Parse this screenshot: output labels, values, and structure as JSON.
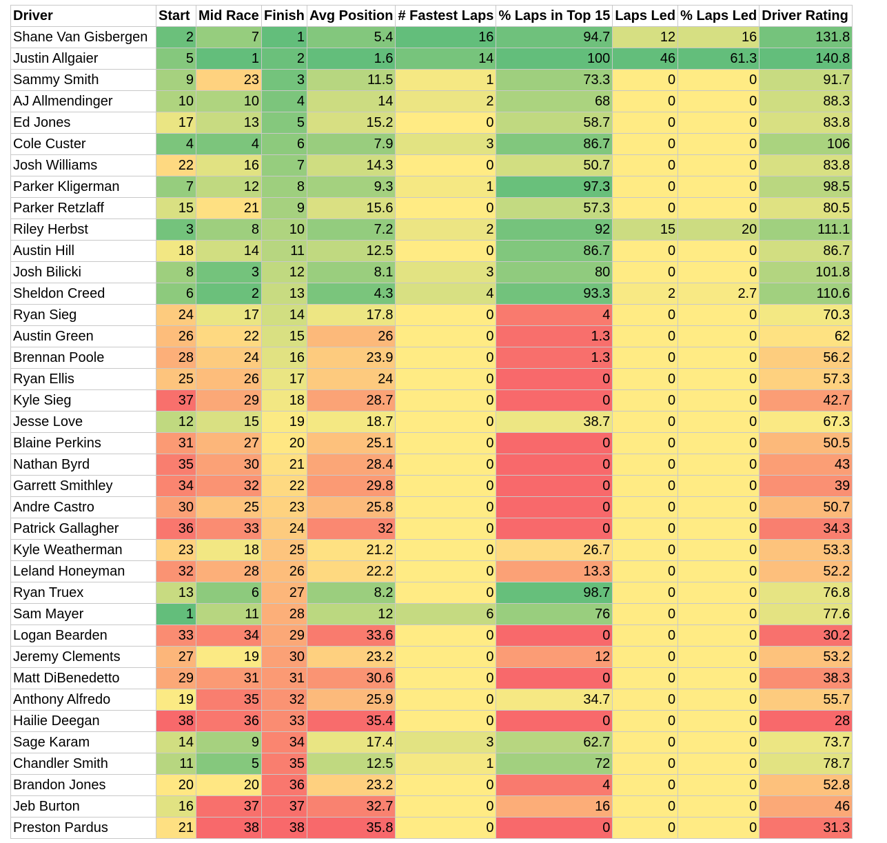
{
  "table": {
    "header": [
      "Driver",
      "Start",
      "Mid Race",
      "Finish",
      "Avg Position",
      "# Fastest Laps",
      "% Laps in Top 15",
      "Laps Led",
      "% Laps Led",
      "Driver Rating"
    ],
    "color_scale": {
      "good": "#63be7b",
      "mid": "#ffeb84",
      "bad": "#f8696b",
      "lower_is_better": [
        true,
        true,
        true,
        true,
        false,
        false,
        false,
        false,
        false
      ]
    },
    "rows": [
      [
        "Shane Van Gisbergen",
        2,
        7,
        1,
        5.4,
        16,
        94.7,
        12,
        16,
        131.8
      ],
      [
        "Justin Allgaier",
        5,
        1,
        2,
        1.6,
        14,
        100,
        46,
        61.3,
        140.8
      ],
      [
        "Sammy Smith",
        9,
        23,
        3,
        11.5,
        1,
        73.3,
        0,
        0,
        91.7
      ],
      [
        "AJ Allmendinger",
        10,
        10,
        4,
        14,
        2,
        68,
        0,
        0,
        88.3
      ],
      [
        "Ed Jones",
        17,
        13,
        5,
        15.2,
        0,
        58.7,
        0,
        0,
        83.8
      ],
      [
        "Cole Custer",
        4,
        4,
        6,
        7.9,
        3,
        86.7,
        0,
        0,
        106
      ],
      [
        "Josh Williams",
        22,
        16,
        7,
        14.3,
        0,
        50.7,
        0,
        0,
        83.8
      ],
      [
        "Parker Kligerman",
        7,
        12,
        8,
        9.3,
        1,
        97.3,
        0,
        0,
        98.5
      ],
      [
        "Parker Retzlaff",
        15,
        21,
        9,
        15.6,
        0,
        57.3,
        0,
        0,
        80.5
      ],
      [
        "Riley Herbst",
        3,
        8,
        10,
        7.2,
        2,
        92,
        15,
        20,
        111.1
      ],
      [
        "Austin Hill",
        18,
        14,
        11,
        12.5,
        0,
        86.7,
        0,
        0,
        86.7
      ],
      [
        "Josh Bilicki",
        8,
        3,
        12,
        8.1,
        3,
        80,
        0,
        0,
        101.8
      ],
      [
        "Sheldon Creed",
        6,
        2,
        13,
        4.3,
        4,
        93.3,
        2,
        2.7,
        110.6
      ],
      [
        "Ryan Sieg",
        24,
        17,
        14,
        17.8,
        0,
        4,
        0,
        0,
        70.3
      ],
      [
        "Austin Green",
        26,
        22,
        15,
        26,
        0,
        1.3,
        0,
        0,
        62
      ],
      [
        "Brennan Poole",
        28,
        24,
        16,
        23.9,
        0,
        1.3,
        0,
        0,
        56.2
      ],
      [
        "Ryan Ellis",
        25,
        26,
        17,
        24,
        0,
        0,
        0,
        0,
        57.3
      ],
      [
        "Kyle Sieg",
        37,
        29,
        18,
        28.7,
        0,
        0,
        0,
        0,
        42.7
      ],
      [
        "Jesse Love",
        12,
        15,
        19,
        18.7,
        0,
        38.7,
        0,
        0,
        67.3
      ],
      [
        "Blaine Perkins",
        31,
        27,
        20,
        25.1,
        0,
        0,
        0,
        0,
        50.5
      ],
      [
        "Nathan Byrd",
        35,
        30,
        21,
        28.4,
        0,
        0,
        0,
        0,
        43
      ],
      [
        "Garrett Smithley",
        34,
        32,
        22,
        29.8,
        0,
        0,
        0,
        0,
        39
      ],
      [
        "Andre Castro",
        30,
        25,
        23,
        25.8,
        0,
        0,
        0,
        0,
        50.7
      ],
      [
        "Patrick Gallagher",
        36,
        33,
        24,
        32,
        0,
        0,
        0,
        0,
        34.3
      ],
      [
        "Kyle Weatherman",
        23,
        18,
        25,
        21.2,
        0,
        26.7,
        0,
        0,
        53.3
      ],
      [
        "Leland Honeyman",
        32,
        28,
        26,
        22.2,
        0,
        13.3,
        0,
        0,
        52.2
      ],
      [
        "Ryan Truex",
        13,
        6,
        27,
        8.2,
        0,
        98.7,
        0,
        0,
        76.8
      ],
      [
        "Sam Mayer",
        1,
        11,
        28,
        12,
        6,
        76,
        0,
        0,
        77.6
      ],
      [
        "Logan Bearden",
        33,
        34,
        29,
        33.6,
        0,
        0,
        0,
        0,
        30.2
      ],
      [
        "Jeremy Clements",
        27,
        19,
        30,
        23.2,
        0,
        12,
        0,
        0,
        53.2
      ],
      [
        "Matt DiBenedetto",
        29,
        31,
        31,
        30.6,
        0,
        0,
        0,
        0,
        38.3
      ],
      [
        "Anthony Alfredo",
        19,
        35,
        32,
        25.9,
        0,
        34.7,
        0,
        0,
        55.7
      ],
      [
        "Hailie Deegan",
        38,
        36,
        33,
        35.4,
        0,
        0,
        0,
        0,
        28
      ],
      [
        "Sage Karam",
        14,
        9,
        34,
        17.4,
        3,
        62.7,
        0,
        0,
        73.7
      ],
      [
        "Chandler Smith",
        11,
        5,
        35,
        12.5,
        1,
        72,
        0,
        0,
        78.7
      ],
      [
        "Brandon Jones",
        20,
        20,
        36,
        23.2,
        0,
        4,
        0,
        0,
        52.8
      ],
      [
        "Jeb Burton",
        16,
        37,
        37,
        32.7,
        0,
        16,
        0,
        0,
        46
      ],
      [
        "Preston Pardus",
        21,
        38,
        38,
        35.8,
        0,
        0,
        0,
        0,
        31.3
      ]
    ]
  }
}
